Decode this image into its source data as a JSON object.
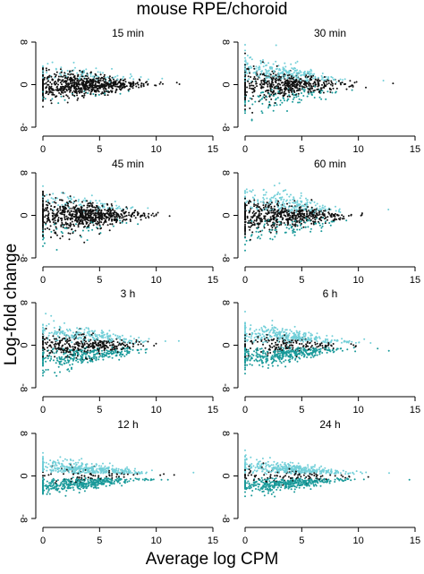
{
  "figure": {
    "title": "mouse RPE/choroid",
    "ylabel": "Log-fold change",
    "xlabel": "Average log CPM"
  },
  "chart_data": [
    {
      "type": "scatter",
      "title": "15 min",
      "xlim": [
        0,
        15
      ],
      "ylim": [
        -8,
        8
      ],
      "xticks": [
        0,
        5,
        10,
        15
      ],
      "yticks": [
        -8,
        0,
        8
      ],
      "spread": 0.3,
      "up": 0.1,
      "down": 0.03,
      "colors": {
        "not_significant": "#111111",
        "up": "#72cfd8",
        "down": "#1a9a9a"
      }
    },
    {
      "type": "scatter",
      "title": "30 min",
      "xlim": [
        0,
        15
      ],
      "ylim": [
        -8,
        8
      ],
      "xticks": [
        0,
        5,
        10,
        15
      ],
      "yticks": [
        -8,
        0,
        8
      ],
      "spread": 0.35,
      "up": 0.3,
      "down": 0.12,
      "colors": {
        "not_significant": "#111111",
        "up": "#72cfd8",
        "down": "#1a9a9a"
      }
    },
    {
      "type": "scatter",
      "title": "45 min",
      "xlim": [
        0,
        15
      ],
      "ylim": [
        -8,
        8
      ],
      "xticks": [
        0,
        5,
        10,
        15
      ],
      "yticks": [
        -8,
        0,
        8
      ],
      "spread": 0.35,
      "up": 0.1,
      "down": 0.05,
      "colors": {
        "not_significant": "#111111",
        "up": "#72cfd8",
        "down": "#1a9a9a"
      }
    },
    {
      "type": "scatter",
      "title": "60 min",
      "xlim": [
        0,
        15
      ],
      "ylim": [
        -8,
        8
      ],
      "xticks": [
        0,
        5,
        10,
        15
      ],
      "yticks": [
        -8,
        0,
        8
      ],
      "spread": 0.35,
      "up": 0.25,
      "down": 0.1,
      "colors": {
        "not_significant": "#111111",
        "up": "#72cfd8",
        "down": "#1a9a9a"
      }
    },
    {
      "type": "scatter",
      "title": "3 h",
      "xlim": [
        0,
        15
      ],
      "ylim": [
        -8,
        8
      ],
      "xticks": [
        0,
        5,
        10,
        15
      ],
      "yticks": [
        -8,
        0,
        8
      ],
      "spread": 0.3,
      "up": 0.3,
      "down": 0.3,
      "colors": {
        "not_significant": "#111111",
        "up": "#72cfd8",
        "down": "#1a9a9a"
      }
    },
    {
      "type": "scatter",
      "title": "6 h",
      "xlim": [
        0,
        15
      ],
      "ylim": [
        -8,
        8
      ],
      "xticks": [
        0,
        5,
        10,
        15
      ],
      "yticks": [
        -8,
        0,
        8
      ],
      "spread": 0.25,
      "up": 0.4,
      "down": 0.4,
      "colors": {
        "not_significant": "#111111",
        "up": "#72cfd8",
        "down": "#1a9a9a"
      }
    },
    {
      "type": "scatter",
      "title": "12 h",
      "xlim": [
        0,
        15
      ],
      "ylim": [
        -8,
        8
      ],
      "xticks": [
        0,
        5,
        10,
        15
      ],
      "yticks": [
        -8,
        0,
        8
      ],
      "spread": 0.2,
      "up": 0.45,
      "down": 0.45,
      "colors": {
        "not_significant": "#111111",
        "up": "#72cfd8",
        "down": "#1a9a9a"
      }
    },
    {
      "type": "scatter",
      "title": "24 h",
      "xlim": [
        0,
        15
      ],
      "ylim": [
        -8,
        8
      ],
      "xticks": [
        0,
        5,
        10,
        15
      ],
      "yticks": [
        -8,
        0,
        8
      ],
      "spread": 0.2,
      "up": 0.45,
      "down": 0.45,
      "colors": {
        "not_significant": "#111111",
        "up": "#72cfd8",
        "down": "#1a9a9a"
      }
    }
  ]
}
